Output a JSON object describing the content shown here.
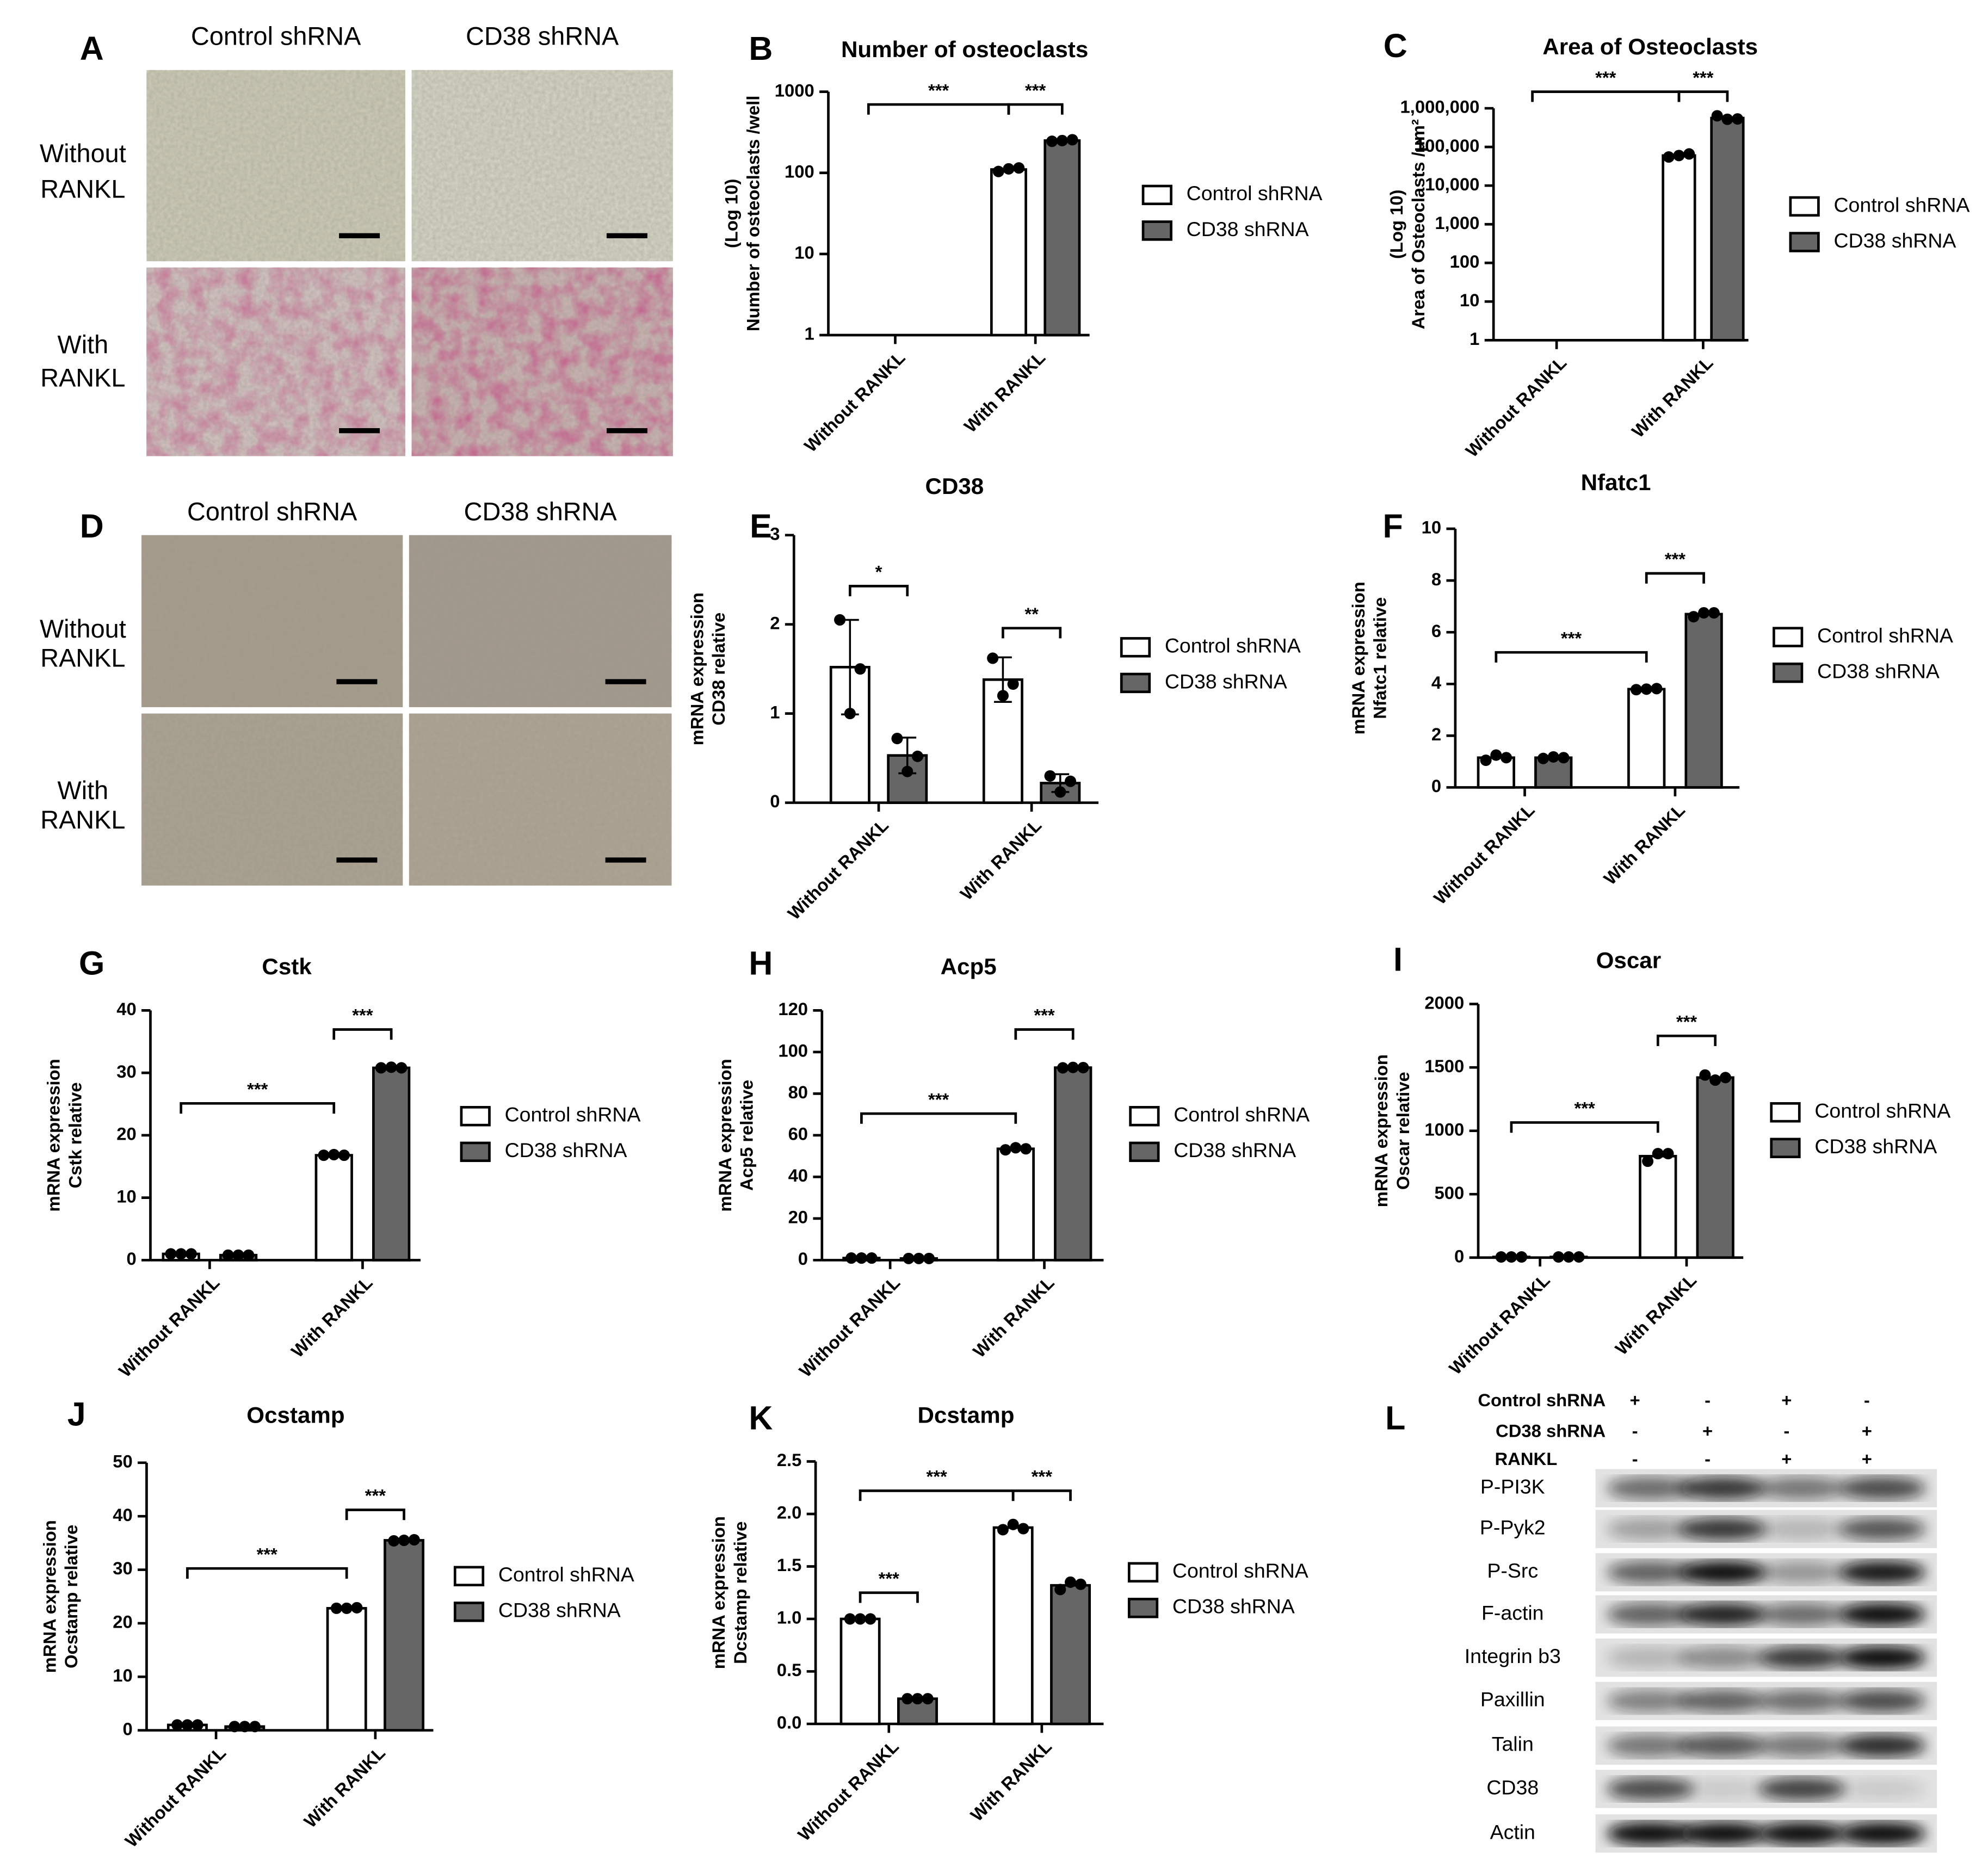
{
  "photo_panels": [
    {
      "panel": "A",
      "columns": [
        "Control shRNA",
        "CD38 shRNA"
      ],
      "rows": [
        [
          "Without",
          "RANKL"
        ],
        [
          "With",
          "RANKL"
        ]
      ]
    },
    {
      "panel": "D",
      "columns": [
        "Control shRNA",
        "CD38 shRNA"
      ],
      "rows": [
        [
          "Without",
          "RANKL"
        ],
        [
          "With",
          "RANKL"
        ]
      ]
    }
  ],
  "western_blot": {
    "panel": "L",
    "conditions": [
      {
        "name": "Control shRNA",
        "signs": [
          "+",
          "-",
          "+",
          "-"
        ]
      },
      {
        "name": "CD38 shRNA",
        "signs": [
          "-",
          "+",
          "-",
          "+"
        ]
      },
      {
        "name": "RANKL",
        "signs": [
          "-",
          "-",
          "+",
          "+"
        ]
      }
    ],
    "bands": [
      "P-PI3K",
      "P-Pyk2",
      "P-Src",
      "F-actin",
      "Integrin b3",
      "Paxillin",
      "Talin",
      "CD38",
      "Actin"
    ]
  },
  "chart_data": [
    {
      "type": "bar",
      "panel": "B",
      "title": "Number of osteoclasts",
      "ylabel": [
        "Number of osteoclasts /well",
        "(Log 10)"
      ],
      "categories": [
        "Without RANKL",
        "With RANKL"
      ],
      "log": true,
      "ylim": [
        1,
        1000
      ],
      "yticks": [
        1,
        10,
        100,
        1000
      ],
      "series": [
        {
          "name": "Control shRNA",
          "color": "#ffffff",
          "values": [
            null,
            110
          ],
          "points": [
            null,
            [
              104,
              112,
              115
            ]
          ]
        },
        {
          "name": "CD38 shRNA",
          "color": "#666666",
          "values": [
            null,
            250
          ],
          "points": [
            null,
            [
              245,
              250,
              256
            ]
          ]
        }
      ],
      "significance": [
        "***",
        "***"
      ]
    },
    {
      "type": "bar",
      "panel": "C",
      "title": "Area of Osteoclasts",
      "ylabel": [
        "Area  of Osteoclasts /μm²",
        "(Log 10)"
      ],
      "categories": [
        "Without RANKL",
        "With RANKL"
      ],
      "log": true,
      "ylim": [
        1,
        1000000
      ],
      "yticks": [
        1,
        10,
        100,
        {
          "value": 1000,
          "label": "1,000"
        },
        {
          "value": 10000,
          "label": "10,000"
        },
        {
          "value": 100000,
          "label": "100,000"
        },
        {
          "value": 1000000,
          "label": "1,000,000"
        }
      ],
      "series": [
        {
          "name": "Control shRNA",
          "color": "#ffffff",
          "values": [
            null,
            60000
          ],
          "points": [
            null,
            [
              55000,
              60000,
              66000
            ]
          ]
        },
        {
          "name": "CD38 shRNA",
          "color": "#666666",
          "values": [
            null,
            560000
          ],
          "points": [
            null,
            [
              640000,
              520000,
              530000
            ]
          ]
        }
      ],
      "significance": [
        "***",
        "***"
      ]
    },
    {
      "type": "bar",
      "panel": "E",
      "title": "CD38",
      "ylabel": [
        "CD38 relative",
        "mRNA expression"
      ],
      "categories": [
        "Without RANKL",
        "With RANKL"
      ],
      "ylim": [
        0,
        3
      ],
      "yticks": [
        0,
        1,
        2,
        3
      ],
      "series": [
        {
          "name": "Control shRNA",
          "color": "#ffffff",
          "values": [
            1.52,
            1.38
          ],
          "errors": [
            0.53,
            0.25
          ],
          "points": [
            [
              2.05,
              1.0,
              1.5
            ],
            [
              1.62,
              1.2,
              1.33
            ]
          ]
        },
        {
          "name": "CD38 shRNA",
          "color": "#666666",
          "values": [
            0.53,
            0.22
          ],
          "errors": [
            0.2,
            0.1
          ],
          "points": [
            [
              0.72,
              0.35,
              0.52
            ],
            [
              0.3,
              0.12,
              0.24
            ]
          ]
        }
      ],
      "significance": [
        "*",
        "**"
      ]
    },
    {
      "type": "bar",
      "panel": "F",
      "title": "Nfatc1",
      "ylabel": [
        "Nfatc1 relative",
        "mRNA expression"
      ],
      "categories": [
        "Without RANKL",
        "With RANKL"
      ],
      "ylim": [
        0,
        10
      ],
      "yticks": [
        0,
        2,
        4,
        6,
        8,
        10
      ],
      "series": [
        {
          "name": "Control shRNA",
          "color": "#ffffff",
          "values": [
            1.15,
            3.8
          ],
          "points": [
            [
              1.05,
              1.25,
              1.15
            ],
            [
              3.78,
              3.8,
              3.82
            ]
          ]
        },
        {
          "name": "CD38 shRNA",
          "color": "#666666",
          "values": [
            1.15,
            6.7
          ],
          "points": [
            [
              1.12,
              1.18,
              1.15
            ],
            [
              6.6,
              6.75,
              6.75
            ]
          ]
        }
      ],
      "significance": [
        "***",
        "***"
      ]
    },
    {
      "type": "bar",
      "panel": "G",
      "title": "Cstk",
      "ylabel": [
        "Cstk relative",
        "mRNA expression"
      ],
      "categories": [
        "Without RANKL",
        "With RANKL"
      ],
      "ylim": [
        0,
        40
      ],
      "yticks": [
        0,
        10,
        20,
        30,
        40
      ],
      "series": [
        {
          "name": "Control shRNA",
          "color": "#ffffff",
          "values": [
            1.0,
            16.8
          ],
          "points": [
            [
              1,
              1,
              1
            ],
            [
              16.8,
              16.9,
              16.8
            ]
          ]
        },
        {
          "name": "CD38 shRNA",
          "color": "#666666",
          "values": [
            0.8,
            30.8
          ],
          "points": [
            [
              0.8,
              0.8,
              0.8
            ],
            [
              30.8,
              30.9,
              30.8
            ]
          ]
        }
      ],
      "significance": [
        "***",
        "***"
      ]
    },
    {
      "type": "bar",
      "panel": "H",
      "title": "Acp5",
      "ylabel": [
        "Acp5 relative",
        "mRNA expression"
      ],
      "categories": [
        "Without RANKL",
        "With RANKL"
      ],
      "ylim": [
        0,
        120
      ],
      "yticks": [
        0,
        20,
        40,
        60,
        80,
        100,
        120
      ],
      "series": [
        {
          "name": "Control shRNA",
          "color": "#ffffff",
          "values": [
            1,
            53.5
          ],
          "points": [
            [
              1,
              1,
              1
            ],
            [
              53,
              54,
              53.5
            ]
          ]
        },
        {
          "name": "CD38 shRNA",
          "color": "#666666",
          "values": [
            0.8,
            92.5
          ],
          "points": [
            [
              0.8,
              0.8,
              0.8
            ],
            [
              92.4,
              92.6,
              92.5
            ]
          ]
        }
      ],
      "significance": [
        "***",
        "***"
      ]
    },
    {
      "type": "bar",
      "panel": "I",
      "title": "Oscar",
      "ylabel": [
        "Oscar relative",
        "mRNA expression"
      ],
      "categories": [
        "Without RANKL",
        "With RANKL"
      ],
      "ylim": [
        0,
        2000
      ],
      "yticks": [
        0,
        500,
        1000,
        1500,
        2000
      ],
      "series": [
        {
          "name": "Control shRNA",
          "color": "#ffffff",
          "values": [
            5,
            800
          ],
          "points": [
            [
              5,
              5,
              5
            ],
            [
              760,
              820,
              820
            ]
          ]
        },
        {
          "name": "CD38 shRNA",
          "color": "#666666",
          "values": [
            5,
            1420
          ],
          "points": [
            [
              5,
              5,
              5
            ],
            [
              1440,
              1400,
              1420
            ]
          ]
        }
      ],
      "significance": [
        "***",
        "***"
      ]
    },
    {
      "type": "bar",
      "panel": "J",
      "title": "Ocstamp",
      "ylabel": [
        "Ocstamp relative",
        "mRNA expression"
      ],
      "categories": [
        "Without RANKL",
        "With RANKL"
      ],
      "ylim": [
        0,
        50
      ],
      "yticks": [
        0,
        10,
        20,
        30,
        40,
        50
      ],
      "series": [
        {
          "name": "Control shRNA",
          "color": "#ffffff",
          "values": [
            1,
            22.8
          ],
          "points": [
            [
              1,
              1,
              1
            ],
            [
              22.8,
              22.8,
              22.9
            ]
          ]
        },
        {
          "name": "CD38 shRNA",
          "color": "#666666",
          "values": [
            0.7,
            35.5
          ],
          "points": [
            [
              0.7,
              0.7,
              0.7
            ],
            [
              35.4,
              35.5,
              35.6
            ]
          ]
        }
      ],
      "significance": [
        "***",
        "***"
      ]
    },
    {
      "type": "bar",
      "panel": "K",
      "title": "Dcstamp",
      "ylabel": [
        "Dcstamp relative",
        "mRNA expression"
      ],
      "categories": [
        "Without RANKL",
        "With RANKL"
      ],
      "ylim": [
        0,
        2.5
      ],
      "yticks": [
        {
          "value": 0,
          "label": "0.0"
        },
        0.5,
        {
          "value": 1,
          "label": "1.0"
        },
        1.5,
        {
          "value": 2,
          "label": "2.0"
        },
        2.5
      ],
      "series": [
        {
          "name": "Control shRNA",
          "color": "#ffffff",
          "values": [
            1.0,
            1.87
          ],
          "points": [
            [
              1.0,
              1.0,
              1.0
            ],
            [
              1.85,
              1.9,
              1.86
            ]
          ]
        },
        {
          "name": "CD38 shRNA",
          "color": "#666666",
          "values": [
            0.24,
            1.32
          ],
          "points": [
            [
              0.24,
              0.24,
              0.24
            ],
            [
              1.28,
              1.35,
              1.33
            ]
          ]
        }
      ],
      "significance": [
        "***",
        "***",
        "***"
      ]
    }
  ]
}
